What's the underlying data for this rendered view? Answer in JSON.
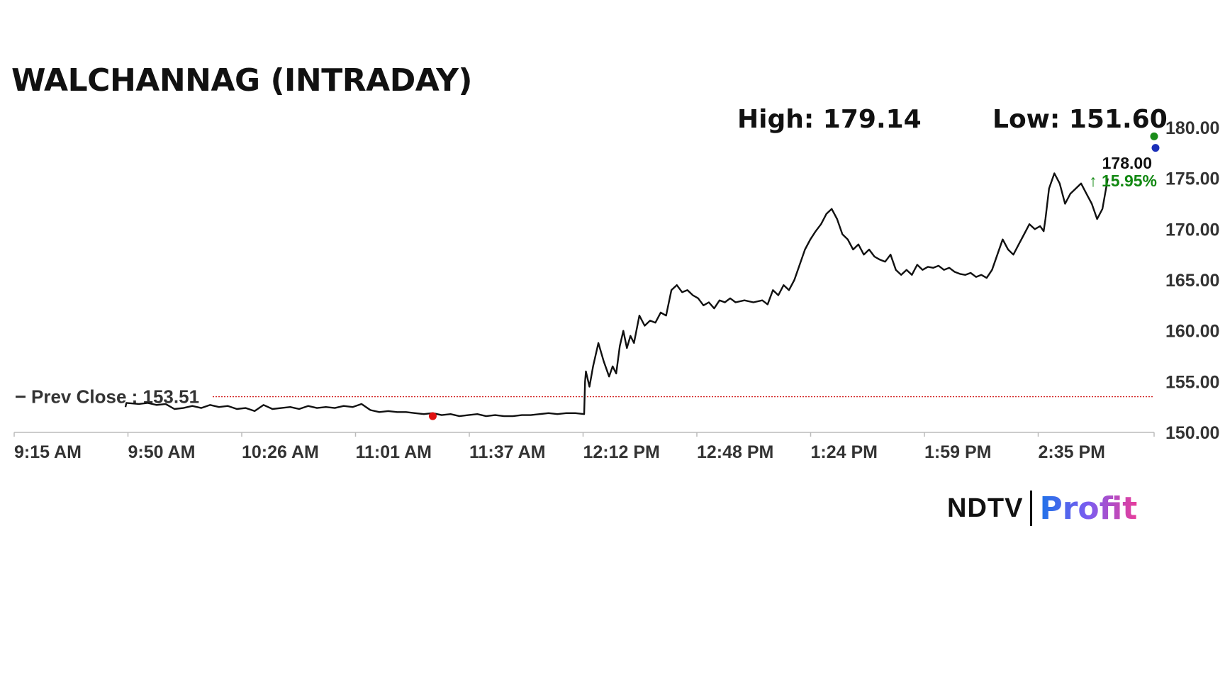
{
  "chart_data": {
    "type": "line",
    "title": "WALCHANNAG (INTRADAY)",
    "high_label": "High: 179.14",
    "low_label": "Low: 151.60",
    "prev_close_label": "Prev Close : 153.51",
    "prev_close": 153.51,
    "last_price_label": "178.00",
    "change_label": "↑ 15.95%",
    "ylim": [
      150,
      180
    ],
    "y_ticks": [
      "150.00",
      "155.00",
      "160.00",
      "165.00",
      "170.00",
      "175.00",
      "180.00"
    ],
    "x_ticks": [
      "9:15 AM",
      "9:50 AM",
      "10:26 AM",
      "11:01 AM",
      "11:37 AM",
      "12:12 PM",
      "12:48 PM",
      "1:24 PM",
      "1:59 PM",
      "2:35 PM"
    ],
    "x_range_minutes": [
      0,
      360
    ],
    "series": [
      {
        "values": [
          [
            62.5,
            152.5
          ],
          [
            63,
            152.9
          ],
          [
            70,
            152.8
          ],
          [
            75,
            152.9
          ],
          [
            80,
            152.7
          ],
          [
            85,
            152.8
          ],
          [
            90,
            152.3
          ],
          [
            95,
            152.4
          ],
          [
            100,
            152.6
          ],
          [
            105,
            152.4
          ],
          [
            110,
            152.7
          ],
          [
            115,
            152.5
          ],
          [
            120,
            152.6
          ],
          [
            125,
            152.3
          ],
          [
            130,
            152.4
          ],
          [
            135,
            152.1
          ],
          [
            140,
            152.7
          ],
          [
            145,
            152.3
          ],
          [
            150,
            152.4
          ],
          [
            155,
            152.5
          ],
          [
            160,
            152.3
          ],
          [
            165,
            152.6
          ],
          [
            170,
            152.4
          ],
          [
            175,
            152.5
          ],
          [
            180,
            152.4
          ],
          [
            185,
            152.6
          ],
          [
            190,
            152.5
          ],
          [
            195,
            152.8
          ],
          [
            200,
            152.2
          ],
          [
            205,
            152.0
          ],
          [
            210,
            152.1
          ],
          [
            215,
            152.0
          ],
          [
            220,
            152.0
          ],
          [
            225,
            151.9
          ],
          [
            230,
            151.8
          ],
          [
            235,
            151.9
          ],
          [
            240,
            151.7
          ],
          [
            245,
            151.8
          ],
          [
            250,
            151.6
          ],
          [
            255,
            151.7
          ],
          [
            260,
            151.8
          ],
          [
            265,
            151.6
          ],
          [
            270,
            151.7
          ],
          [
            275,
            151.6
          ],
          [
            280,
            151.6
          ],
          [
            285,
            151.7
          ],
          [
            290,
            151.7
          ],
          [
            295,
            151.8
          ],
          [
            300,
            151.9
          ],
          [
            305,
            151.8
          ],
          [
            310,
            151.9
          ],
          [
            315,
            151.9
          ],
          [
            320,
            151.8
          ],
          [
            320.5,
            155.0
          ],
          [
            321,
            156.0
          ],
          [
            323,
            154.5
          ],
          [
            325,
            156.5
          ],
          [
            328,
            158.8
          ],
          [
            331,
            157.0
          ],
          [
            334,
            155.5
          ],
          [
            336,
            156.5
          ],
          [
            338,
            155.8
          ],
          [
            340,
            158.5
          ],
          [
            342,
            160.0
          ],
          [
            344,
            158.3
          ],
          [
            346,
            159.5
          ],
          [
            348,
            158.8
          ],
          [
            351,
            161.5
          ],
          [
            354,
            160.5
          ],
          [
            357,
            161.0
          ],
          [
            360,
            160.8
          ],
          [
            363,
            161.8
          ],
          [
            366,
            161.5
          ],
          [
            369,
            164.0
          ],
          [
            372,
            164.5
          ],
          [
            375,
            163.8
          ],
          [
            378,
            164.0
          ],
          [
            381,
            163.5
          ],
          [
            384,
            163.2
          ],
          [
            387,
            162.5
          ],
          [
            390,
            162.8
          ],
          [
            393,
            162.2
          ],
          [
            396,
            163.0
          ],
          [
            399,
            162.8
          ],
          [
            402,
            163.2
          ],
          [
            405,
            162.8
          ],
          [
            410,
            163.0
          ],
          [
            415,
            162.8
          ],
          [
            420,
            163.0
          ],
          [
            423,
            162.6
          ],
          [
            426,
            164.0
          ],
          [
            429,
            163.5
          ],
          [
            432,
            164.5
          ],
          [
            435,
            164.0
          ],
          [
            438,
            165.0
          ],
          [
            441,
            166.5
          ],
          [
            444,
            168.0
          ],
          [
            447,
            169.0
          ],
          [
            450,
            169.8
          ],
          [
            453,
            170.5
          ],
          [
            456,
            171.5
          ],
          [
            459,
            172.0
          ],
          [
            462,
            171.0
          ],
          [
            465,
            169.5
          ],
          [
            468,
            169.0
          ],
          [
            471,
            168.0
          ],
          [
            474,
            168.5
          ],
          [
            477,
            167.5
          ],
          [
            480,
            168.0
          ],
          [
            483,
            167.3
          ],
          [
            486,
            167.0
          ],
          [
            489,
            166.8
          ],
          [
            492,
            167.5
          ],
          [
            495,
            166.0
          ],
          [
            498,
            165.5
          ],
          [
            501,
            166.0
          ],
          [
            504,
            165.5
          ],
          [
            507,
            166.5
          ],
          [
            510,
            166.0
          ],
          [
            513,
            166.3
          ],
          [
            516,
            166.2
          ],
          [
            519,
            166.4
          ],
          [
            522,
            166.0
          ],
          [
            525,
            166.2
          ],
          [
            528,
            165.8
          ],
          [
            531,
            165.6
          ],
          [
            534,
            165.5
          ],
          [
            537,
            165.7
          ],
          [
            540,
            165.3
          ],
          [
            543,
            165.5
          ],
          [
            546,
            165.2
          ],
          [
            549,
            166.0
          ],
          [
            552,
            167.5
          ],
          [
            555,
            169.0
          ],
          [
            558,
            168.0
          ],
          [
            561,
            167.5
          ],
          [
            564,
            168.5
          ],
          [
            567,
            169.5
          ],
          [
            570,
            170.5
          ],
          [
            573,
            170.0
          ],
          [
            576,
            170.3
          ],
          [
            578,
            169.8
          ],
          [
            579,
            171.0
          ],
          [
            581,
            174.0
          ],
          [
            584,
            175.5
          ],
          [
            587,
            174.5
          ],
          [
            590,
            172.5
          ],
          [
            593,
            173.5
          ],
          [
            596,
            174.0
          ],
          [
            599,
            174.5
          ],
          [
            602,
            173.5
          ],
          [
            605,
            172.5
          ],
          [
            608,
            171.0
          ],
          [
            611,
            172.0
          ],
          [
            614,
            175.0
          ]
        ]
      }
    ],
    "markers": {
      "low_point": [
        235,
        151.6
      ],
      "high_point": [
        640,
        179.14
      ],
      "last_point": [
        640,
        178.0
      ]
    },
    "colors": {
      "line": "#111111",
      "prev_close_line": "#cc0000",
      "low_marker": "#e01010",
      "high_marker": "#1a8c1a",
      "last_marker": "#1a2fb8",
      "change_text": "#118811",
      "axis": "#bbbbbb"
    },
    "grid": false
  },
  "brand": {
    "ndtv": "NDTV",
    "profit": "Profit"
  }
}
